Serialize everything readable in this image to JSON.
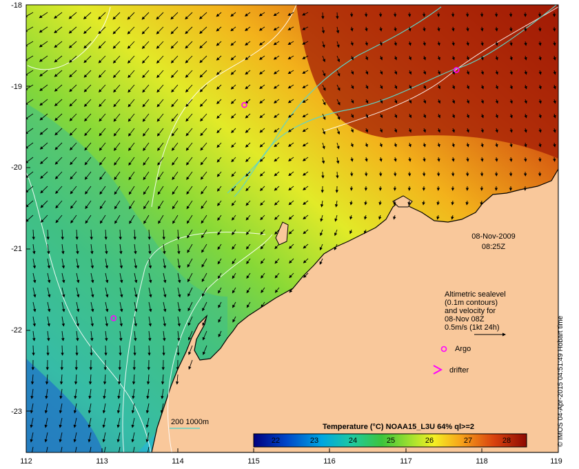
{
  "map": {
    "date": "08-Nov-2009",
    "time": "08:25Z",
    "x_ticks": [
      "112",
      "113",
      "114",
      "115",
      "116",
      "117",
      "118",
      "119"
    ],
    "y_ticks": [
      "-18",
      "-19",
      "-20",
      "-21",
      "-22",
      "-23"
    ],
    "lon_range": [
      112,
      119
    ],
    "lat_range": [
      -18,
      -23.5
    ],
    "land_color": "#f9c89b",
    "contour_color": "#ffffff",
    "isobath_color": "#5fd3c8"
  },
  "legend": {
    "lines": [
      "Altimetric sealevel",
      "(0.1m contours)",
      "and velocity for",
      "08-Nov 08Z",
      "0.5m/s (1kt 24h)"
    ],
    "argo_label": "Argo",
    "drifter_label": "drifter",
    "marker_color": "#ff00ff"
  },
  "isobath_label": "200  1000m",
  "colorbar": {
    "title": "Temperature (°C) NOAA15_L3U 64% ql>=2",
    "ticks": [
      "22",
      "23",
      "24",
      "25",
      "26",
      "27",
      "28"
    ],
    "range": [
      21.5,
      28.5
    ]
  },
  "argo_floats": [
    {
      "lon": 114.87,
      "lat": -19.23
    },
    {
      "lon": 117.66,
      "lat": -18.8
    },
    {
      "lon": 113.15,
      "lat": -21.85
    }
  ],
  "credit": "© IMOS 04-Apr-2015 04:51:49 Hobart time"
}
